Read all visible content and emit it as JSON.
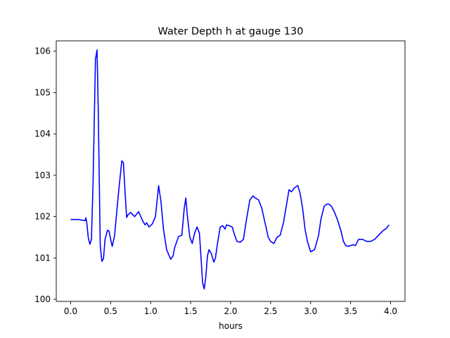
{
  "chart_data": {
    "type": "line",
    "title": "Water Depth h at gauge 130",
    "xlabel": "hours",
    "ylabel": "",
    "xlim": [
      -0.18,
      4.18
    ],
    "ylim": [
      99.95,
      106.25
    ],
    "xticks": [
      0.0,
      0.5,
      1.0,
      1.5,
      2.0,
      2.5,
      3.0,
      3.5,
      4.0
    ],
    "xtick_labels": [
      "0.0",
      "0.5",
      "1.0",
      "1.5",
      "2.0",
      "2.5",
      "3.0",
      "3.5",
      "4.0"
    ],
    "yticks": [
      100,
      101,
      102,
      103,
      104,
      105,
      106
    ],
    "ytick_labels": [
      "100",
      "101",
      "102",
      "103",
      "104",
      "105",
      "106"
    ],
    "grid": false,
    "color": "#0000ff",
    "series": [
      {
        "x": [
          0.0,
          0.1,
          0.18,
          0.19,
          0.2,
          0.22,
          0.24,
          0.26,
          0.28,
          0.3,
          0.31,
          0.33,
          0.345,
          0.36,
          0.37,
          0.39,
          0.41,
          0.43,
          0.46,
          0.48,
          0.5,
          0.52,
          0.55,
          0.58,
          0.61,
          0.64,
          0.66,
          0.68,
          0.7,
          0.72,
          0.75,
          0.8,
          0.85,
          0.9,
          0.93,
          0.95,
          0.98,
          1.02,
          1.06,
          1.1,
          1.13,
          1.16,
          1.2,
          1.25,
          1.28,
          1.3,
          1.35,
          1.39,
          1.42,
          1.44,
          1.46,
          1.49,
          1.52,
          1.55,
          1.58,
          1.61,
          1.63,
          1.65,
          1.67,
          1.69,
          1.71,
          1.73,
          1.76,
          1.79,
          1.81,
          1.84,
          1.87,
          1.9,
          1.93,
          1.95,
          1.98,
          2.02,
          2.05,
          2.08,
          2.12,
          2.16,
          2.2,
          2.24,
          2.28,
          2.31,
          2.35,
          2.39,
          2.43,
          2.47,
          2.5,
          2.54,
          2.58,
          2.62,
          2.66,
          2.7,
          2.73,
          2.76,
          2.8,
          2.84,
          2.87,
          2.9,
          2.93,
          2.96,
          3.0,
          3.05,
          3.1,
          3.13,
          3.17,
          3.2,
          3.23,
          3.26,
          3.3,
          3.34,
          3.38,
          3.41,
          3.44,
          3.47,
          3.5,
          3.53,
          3.56,
          3.6,
          3.65,
          3.7,
          3.75,
          3.8,
          3.85,
          3.9,
          3.95,
          3.98
        ],
        "y": [
          101.93,
          101.93,
          101.9,
          101.97,
          101.88,
          101.5,
          101.33,
          101.45,
          102.8,
          104.8,
          105.8,
          106.03,
          104.6,
          102.6,
          101.3,
          100.92,
          100.98,
          101.45,
          101.67,
          101.65,
          101.45,
          101.28,
          101.55,
          102.2,
          102.8,
          103.35,
          103.3,
          102.6,
          101.98,
          102.05,
          102.1,
          102.0,
          102.12,
          101.9,
          101.8,
          101.85,
          101.75,
          101.82,
          102.0,
          102.75,
          102.35,
          101.7,
          101.2,
          100.97,
          101.05,
          101.25,
          101.52,
          101.55,
          102.2,
          102.45,
          102.0,
          101.5,
          101.35,
          101.6,
          101.75,
          101.6,
          101.0,
          100.4,
          100.25,
          100.55,
          101.05,
          101.2,
          101.1,
          100.9,
          101.0,
          101.4,
          101.75,
          101.78,
          101.7,
          101.8,
          101.78,
          101.75,
          101.55,
          101.4,
          101.38,
          101.45,
          101.95,
          102.4,
          102.5,
          102.45,
          102.4,
          102.2,
          101.85,
          101.5,
          101.4,
          101.35,
          101.5,
          101.55,
          101.85,
          102.3,
          102.65,
          102.6,
          102.7,
          102.75,
          102.55,
          102.2,
          101.7,
          101.4,
          101.15,
          101.2,
          101.55,
          101.95,
          102.25,
          102.3,
          102.3,
          102.25,
          102.1,
          101.9,
          101.65,
          101.4,
          101.3,
          101.28,
          101.3,
          101.32,
          101.3,
          101.45,
          101.45,
          101.4,
          101.4,
          101.45,
          101.55,
          101.65,
          101.72,
          101.8
        ]
      }
    ]
  }
}
